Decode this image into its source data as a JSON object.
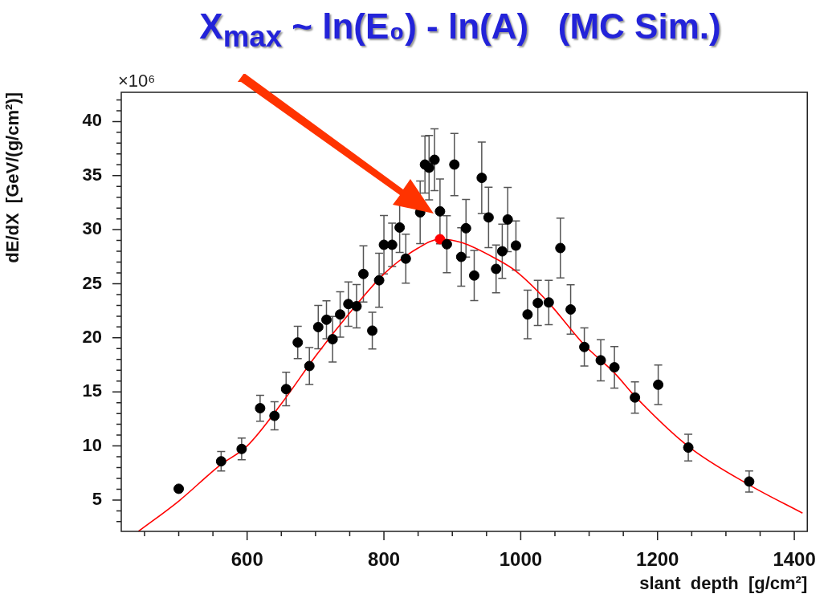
{
  "chart_data": {
    "type": "scatter",
    "title": "X$_{max}$ ~ ln(E₀) - ln(A)   (MC Sim.)",
    "xlabel": "slant  depth  [g/cm²]",
    "ylabel": "dE/dX  [GeV/(g/cm²)]",
    "annotations": [
      "×10⁶"
    ],
    "xlim": [
      416,
      1419
    ],
    "ylim": [
      2.1,
      42.7
    ],
    "xticks": [
      {
        "value": 450,
        "label": null
      },
      {
        "value": 500,
        "label": null
      },
      {
        "value": 550,
        "label": null
      },
      600,
      {
        "value": 650,
        "label": null
      },
      {
        "value": 700,
        "label": null
      },
      {
        "value": 750,
        "label": null
      },
      800,
      {
        "value": 850,
        "label": null
      },
      {
        "value": 900,
        "label": null
      },
      {
        "value": 950,
        "label": null
      },
      1000,
      {
        "value": 1050,
        "label": null
      },
      {
        "value": 1100,
        "label": null
      },
      {
        "value": 1150,
        "label": null
      },
      1200,
      {
        "value": 1250,
        "label": null
      },
      {
        "value": 1300,
        "label": null
      },
      {
        "value": 1350,
        "label": null
      },
      1400
    ],
    "yticks": [
      {
        "value": 3,
        "label": null
      },
      {
        "value": 4,
        "label": null
      },
      5,
      {
        "value": 6,
        "label": null
      },
      {
        "value": 7,
        "label": null
      },
      {
        "value": 8,
        "label": null
      },
      {
        "value": 9,
        "label": null
      },
      10,
      {
        "value": 11,
        "label": null
      },
      {
        "value": 12,
        "label": null
      },
      {
        "value": 13,
        "label": null
      },
      {
        "value": 14,
        "label": null
      },
      15,
      {
        "value": 16,
        "label": null
      },
      {
        "value": 17,
        "label": null
      },
      {
        "value": 18,
        "label": null
      },
      {
        "value": 19,
        "label": null
      },
      20,
      {
        "value": 21,
        "label": null
      },
      {
        "value": 22,
        "label": null
      },
      {
        "value": 23,
        "label": null
      },
      {
        "value": 24,
        "label": null
      },
      25,
      {
        "value": 26,
        "label": null
      },
      {
        "value": 27,
        "label": null
      },
      {
        "value": 28,
        "label": null
      },
      {
        "value": 29,
        "label": null
      },
      30,
      {
        "value": 31,
        "label": null
      },
      {
        "value": 32,
        "label": null
      },
      {
        "value": 33,
        "label": null
      },
      {
        "value": 34,
        "label": null
      },
      35,
      {
        "value": 36,
        "label": null
      },
      {
        "value": 37,
        "label": null
      },
      {
        "value": 38,
        "label": null
      },
      {
        "value": 39,
        "label": null
      },
      40,
      {
        "value": 41,
        "label": null
      },
      {
        "value": 42,
        "label": null
      }
    ],
    "marker": "circle",
    "series": [
      {
        "type": "scatter",
        "color": "#000000",
        "x": [
          500,
          562,
          592,
          619,
          640,
          657,
          674,
          691,
          704,
          716,
          725,
          736,
          748,
          760,
          770,
          783,
          793,
          800,
          812,
          823,
          832,
          853,
          860,
          866,
          874,
          882,
          892,
          903,
          913,
          920,
          932,
          943,
          953,
          964,
          973,
          981,
          993,
          1010,
          1025,
          1041,
          1058,
          1073,
          1093,
          1117,
          1137,
          1167,
          1201,
          1245,
          1334
        ],
        "values": [
          6.04,
          8.58,
          9.72,
          13.49,
          12.78,
          15.26,
          19.57,
          17.39,
          20.99,
          21.67,
          19.87,
          22.16,
          23.12,
          22.92,
          25.9,
          20.66,
          25.32,
          28.6,
          28.6,
          30.2,
          27.32,
          31.6,
          36.02,
          35.73,
          36.46,
          31.69,
          28.65,
          36.02,
          27.48,
          30.13,
          25.76,
          34.79,
          31.13,
          26.37,
          28.0,
          30.94,
          28.53,
          22.16,
          23.22,
          23.27,
          28.3,
          22.62,
          19.15,
          17.92,
          17.27,
          14.48,
          15.66,
          9.85,
          6.71
        ],
        "errors": [
          null,
          0.9,
          1.0,
          1.2,
          1.3,
          1.55,
          1.5,
          1.7,
          2.0,
          1.75,
          2.1,
          2.1,
          2.05,
          2.0,
          2.6,
          1.7,
          2.5,
          2.7,
          2.0,
          2.3,
          2.26,
          2.9,
          2.64,
          2.98,
          2.86,
          3.0,
          2.64,
          2.88,
          2.7,
          2.66,
          2.32,
          3.3,
          2.8,
          2.2,
          2.5,
          2.97,
          2.27,
          2.25,
          2.09,
          2.05,
          2.77,
          2.28,
          1.76,
          1.91,
          1.92,
          1.45,
          1.83,
          1.24,
          0.98
        ]
      },
      {
        "type": "line",
        "color": "#ff0000",
        "marker": "none",
        "x": [
          441,
          500,
          560,
          600,
          650,
          700,
          750,
          800,
          850,
          882,
          914,
          964,
          993,
          1040,
          1093,
          1137,
          1167,
          1245,
          1334,
          1412
        ],
        "values": [
          2.1,
          4.9,
          8.2,
          10.0,
          13.9,
          18.3,
          22.3,
          25.9,
          28.3,
          29.12,
          28.8,
          27.3,
          26.16,
          23.3,
          19.34,
          16.75,
          14.6,
          9.96,
          6.4,
          3.79
        ]
      },
      {
        "type": "scatter",
        "color": "#ff0000",
        "x": [
          882
        ],
        "values": [
          29.12
        ]
      }
    ]
  }
}
